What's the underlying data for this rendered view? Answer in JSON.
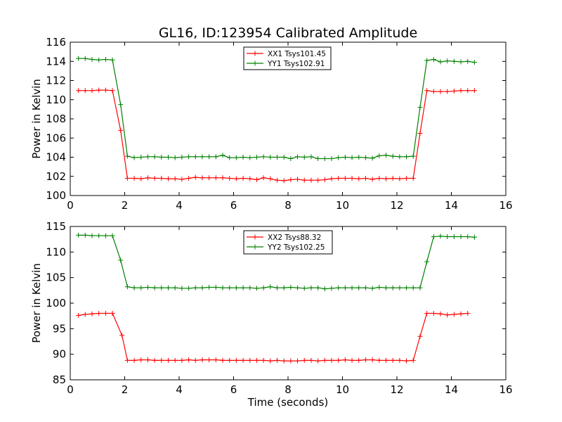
{
  "figure_title": "GL16, ID:123954 Calibrated Amplitude",
  "chart_data": [
    {
      "type": "line",
      "title": "GL16, ID:123954 Calibrated Amplitude",
      "xlabel": "",
      "ylabel": "Power in Kelvin",
      "xlim": [
        0,
        16
      ],
      "ylim": [
        100,
        116
      ],
      "xticks": [
        0,
        2,
        4,
        6,
        8,
        10,
        12,
        14,
        16
      ],
      "yticks": [
        100,
        102,
        104,
        106,
        108,
        110,
        112,
        114,
        116
      ],
      "legend_position": "top-center",
      "x": [
        0.3,
        0.55,
        0.8,
        1.05,
        1.3,
        1.55,
        1.85,
        2.1,
        2.35,
        2.6,
        2.85,
        3.1,
        3.35,
        3.6,
        3.85,
        4.1,
        4.35,
        4.6,
        4.85,
        5.1,
        5.35,
        5.6,
        5.85,
        6.1,
        6.35,
        6.6,
        6.85,
        7.1,
        7.35,
        7.6,
        7.85,
        8.1,
        8.35,
        8.6,
        8.85,
        9.1,
        9.35,
        9.6,
        9.85,
        10.1,
        10.35,
        10.6,
        10.85,
        11.1,
        11.35,
        11.6,
        11.85,
        12.1,
        12.35,
        12.6,
        12.85,
        13.1,
        13.35,
        13.6,
        13.85,
        14.1,
        14.35,
        14.6,
        14.85
      ],
      "series": [
        {
          "name": "XX1 Tsys101.45",
          "color": "#ff0000",
          "values": [
            110.95,
            110.95,
            110.95,
            111.0,
            111.0,
            110.95,
            106.8,
            101.8,
            101.8,
            101.75,
            101.85,
            101.8,
            101.8,
            101.75,
            101.75,
            101.7,
            101.8,
            101.9,
            101.85,
            101.85,
            101.85,
            101.85,
            101.8,
            101.75,
            101.8,
            101.75,
            101.65,
            101.85,
            101.75,
            101.6,
            101.55,
            101.65,
            101.7,
            101.6,
            101.6,
            101.6,
            101.65,
            101.75,
            101.8,
            101.8,
            101.8,
            101.75,
            101.8,
            101.7,
            101.8,
            101.75,
            101.8,
            101.75,
            101.8,
            101.8,
            106.5,
            110.95,
            110.85,
            110.85,
            110.85,
            110.9,
            110.95,
            110.95,
            110.95
          ]
        },
        {
          "name": "YY1 Tsys102.91",
          "color": "#008000",
          "values": [
            114.3,
            114.3,
            114.2,
            114.15,
            114.2,
            114.15,
            109.5,
            104.1,
            103.95,
            104.0,
            104.05,
            104.05,
            104.0,
            104.0,
            103.95,
            104.0,
            104.05,
            104.05,
            104.05,
            104.05,
            104.05,
            104.2,
            103.95,
            103.95,
            104.0,
            103.95,
            104.0,
            104.05,
            104.0,
            104.0,
            104.0,
            103.85,
            104.05,
            104.0,
            104.05,
            103.85,
            103.85,
            103.85,
            103.95,
            104.0,
            103.95,
            104.0,
            103.95,
            103.9,
            104.15,
            104.2,
            104.1,
            104.05,
            104.05,
            104.1,
            109.2,
            114.1,
            114.2,
            113.95,
            114.05,
            114.0,
            113.95,
            114.0,
            113.9
          ]
        }
      ]
    },
    {
      "type": "line",
      "title": "",
      "xlabel": "Time (seconds)",
      "ylabel": "Power in Kelvin",
      "xlim": [
        0,
        16
      ],
      "ylim": [
        85,
        115
      ],
      "xticks": [
        0,
        2,
        4,
        6,
        8,
        10,
        12,
        14,
        16
      ],
      "yticks": [
        85,
        90,
        95,
        100,
        105,
        110,
        115
      ],
      "legend_position": "top-center",
      "x": [
        0.3,
        0.55,
        0.8,
        1.05,
        1.3,
        1.55,
        1.85,
        2.1,
        2.35,
        2.6,
        2.85,
        3.1,
        3.35,
        3.6,
        3.85,
        4.1,
        4.35,
        4.6,
        4.85,
        5.1,
        5.35,
        5.6,
        5.85,
        6.1,
        6.35,
        6.6,
        6.85,
        7.1,
        7.35,
        7.6,
        7.85,
        8.1,
        8.35,
        8.6,
        8.85,
        9.1,
        9.35,
        9.6,
        9.85,
        10.1,
        10.35,
        10.6,
        10.85,
        11.1,
        11.35,
        11.6,
        11.85,
        12.1,
        12.35,
        12.6,
        12.85,
        13.1,
        13.35,
        13.6,
        13.85,
        14.1,
        14.35,
        14.6,
        14.85
      ],
      "series": [
        {
          "name": "XX2 Tsys88.32",
          "color": "#ff0000",
          "values": [
            97.6,
            97.8,
            97.9,
            98.0,
            98.0,
            98.0,
            98.0,
            93.7,
            88.8,
            88.8,
            88.9,
            88.9,
            88.8,
            88.8,
            88.8,
            88.8,
            88.8,
            88.9,
            88.8,
            88.9,
            88.9,
            88.9,
            88.8,
            88.8,
            88.8,
            88.8,
            88.8,
            88.8,
            88.8,
            88.7,
            88.8,
            88.7,
            88.7,
            88.7,
            88.8,
            88.8,
            88.7,
            88.8,
            88.8,
            88.8,
            88.9,
            88.8,
            88.8,
            88.9,
            88.9,
            88.8,
            88.8,
            88.8,
            88.8,
            88.7,
            88.8,
            93.5,
            98.0,
            98.0,
            97.9,
            97.7,
            97.8,
            97.9,
            98.0
          ],
          "x": [
            0.3,
            0.55,
            0.8,
            1.05,
            1.3,
            1.55,
            1.55,
            1.9,
            2.1,
            2.35,
            2.6,
            2.85,
            3.1,
            3.35,
            3.6,
            3.85,
            4.1,
            4.35,
            4.6,
            4.85,
            5.1,
            5.35,
            5.6,
            5.85,
            6.1,
            6.35,
            6.6,
            6.85,
            7.1,
            7.35,
            7.6,
            7.85,
            8.1,
            8.35,
            8.6,
            8.85,
            9.1,
            9.35,
            9.6,
            9.85,
            10.1,
            10.35,
            10.6,
            10.85,
            11.1,
            11.35,
            11.6,
            11.85,
            12.1,
            12.35,
            12.6,
            12.85,
            13.1,
            13.35,
            13.6,
            13.85,
            14.1,
            14.35,
            14.6
          ]
        },
        {
          "name": "YY2 Tsys102.25",
          "color": "#008000",
          "values": [
            113.3,
            113.3,
            113.2,
            113.2,
            113.2,
            113.2,
            108.4,
            103.2,
            103.0,
            103.0,
            103.1,
            103.0,
            103.0,
            103.0,
            103.0,
            102.9,
            102.9,
            103.0,
            103.0,
            103.1,
            103.1,
            103.0,
            103.0,
            103.0,
            103.0,
            103.0,
            102.9,
            103.0,
            103.2,
            103.0,
            103.0,
            103.1,
            103.0,
            102.9,
            103.0,
            103.0,
            102.8,
            102.9,
            103.0,
            103.0,
            103.0,
            103.0,
            103.0,
            102.9,
            103.1,
            103.0,
            103.0,
            103.0,
            103.0,
            103.0,
            103.0,
            108.1,
            113.0,
            113.1,
            113.0,
            113.0,
            113.0,
            113.0,
            112.9
          ]
        }
      ]
    }
  ]
}
